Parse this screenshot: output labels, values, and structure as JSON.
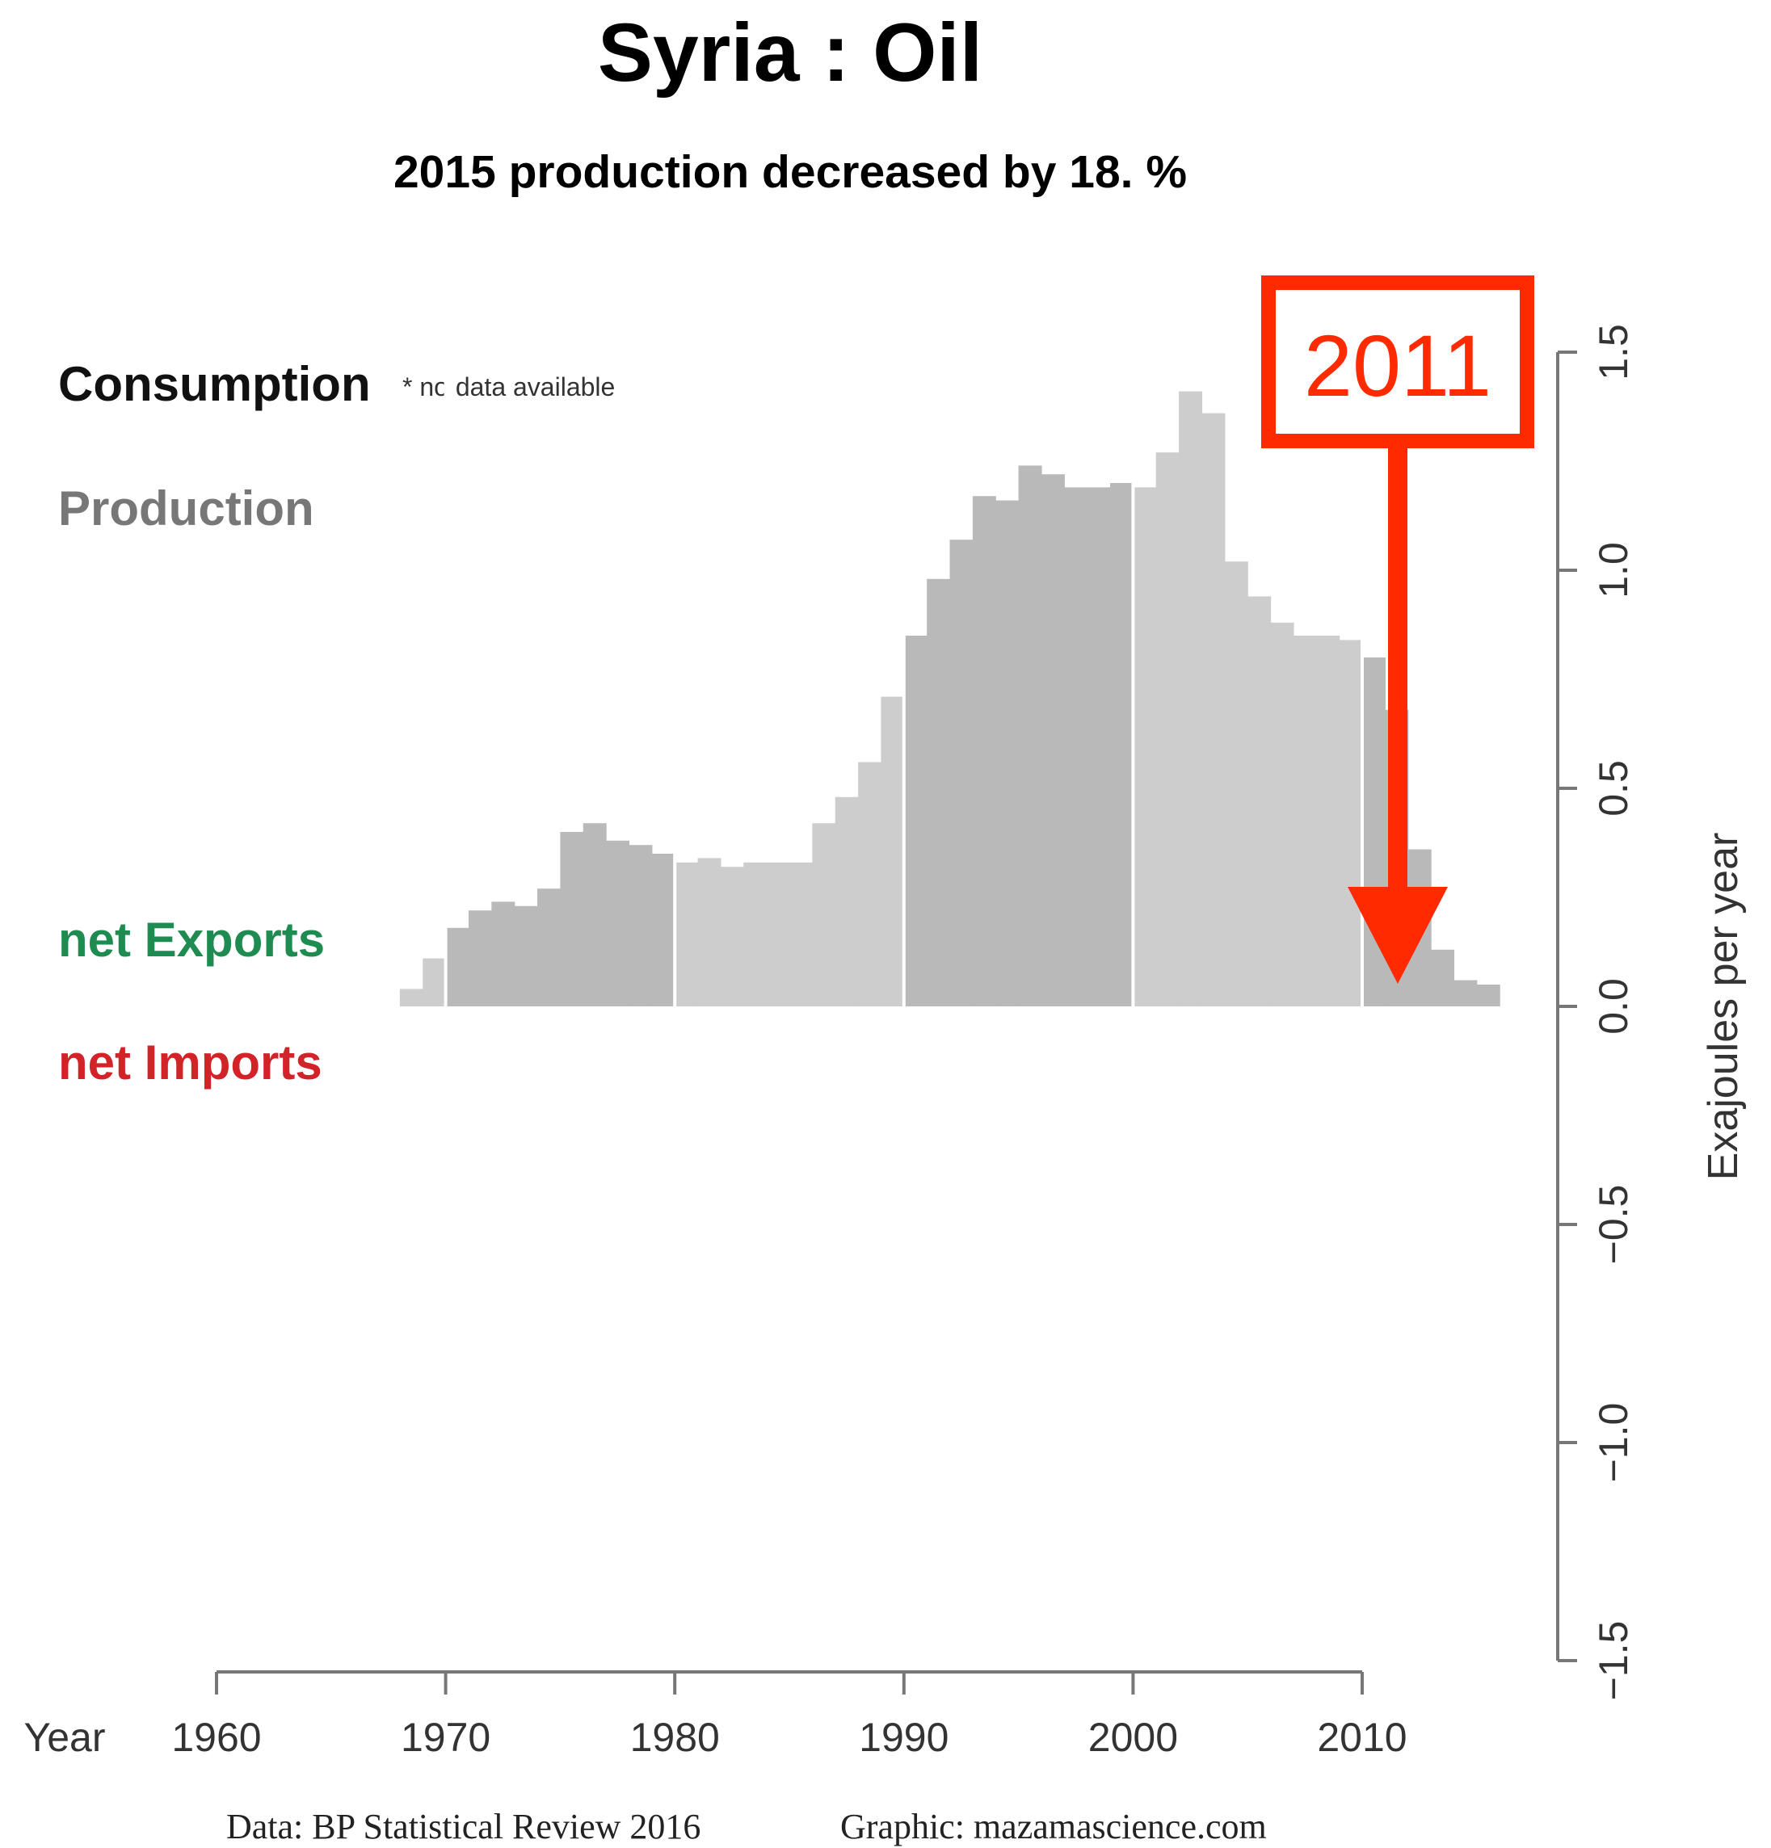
{
  "title": "Syria :  Oil",
  "subtitle": "2015 production decreased by 18. %",
  "legend": {
    "consumption": "Consumption",
    "no_data_note": "* no data available",
    "production": "Production",
    "net_exports": "net Exports",
    "net_imports": "net Imports"
  },
  "colors": {
    "production_light": "#cdcdcd",
    "production_dark": "#b9b9b9",
    "net_exports": "#1e8c50",
    "net_imports": "#d22328",
    "production_label": "#777777",
    "annotation": "#ff2a00",
    "axis": "#777777"
  },
  "annotation": {
    "label": "2011"
  },
  "footer": {
    "source": "Data: BP Statistical Review 2016",
    "graphic": "Graphic: mazamascience.com"
  },
  "chart_data": {
    "type": "bar",
    "xlabel": "Year",
    "ylabel": "Exajoules per year",
    "xlim": [
      1960,
      2015
    ],
    "ylim": [
      -1.5,
      1.5
    ],
    "x_ticks": [
      1960,
      1970,
      1980,
      1990,
      2000,
      2010
    ],
    "y_ticks": [
      -1.5,
      -1.0,
      -0.5,
      0.0,
      0.5,
      1.0,
      1.5
    ],
    "y_tick_labels": [
      "−1.5",
      "−1.0",
      "−0.5",
      "0.0",
      "0.5",
      "1.0",
      "1.5"
    ],
    "series": [
      {
        "name": "Production",
        "x": [
          1968,
          1969,
          1970,
          1971,
          1972,
          1973,
          1974,
          1975,
          1976,
          1977,
          1978,
          1979,
          1980,
          1981,
          1982,
          1983,
          1984,
          1985,
          1986,
          1987,
          1988,
          1989,
          1990,
          1991,
          1992,
          1993,
          1994,
          1995,
          1996,
          1997,
          1998,
          1999,
          2000,
          2001,
          2002,
          2003,
          2004,
          2005,
          2006,
          2007,
          2008,
          2009,
          2010,
          2011,
          2012,
          2013,
          2014,
          2015
        ],
        "values": [
          0.04,
          0.11,
          0.18,
          0.22,
          0.24,
          0.23,
          0.27,
          0.4,
          0.42,
          0.38,
          0.37,
          0.35,
          0.33,
          0.34,
          0.32,
          0.33,
          0.33,
          0.33,
          0.42,
          0.48,
          0.56,
          0.71,
          0.85,
          0.98,
          1.07,
          1.17,
          1.16,
          1.24,
          1.22,
          1.19,
          1.19,
          1.2,
          1.19,
          1.27,
          1.41,
          1.36,
          1.02,
          0.94,
          0.88,
          0.85,
          0.85,
          0.84,
          0.8,
          0.68,
          0.36,
          0.13,
          0.06,
          0.05
        ]
      }
    ],
    "highlight_year": 2011
  }
}
